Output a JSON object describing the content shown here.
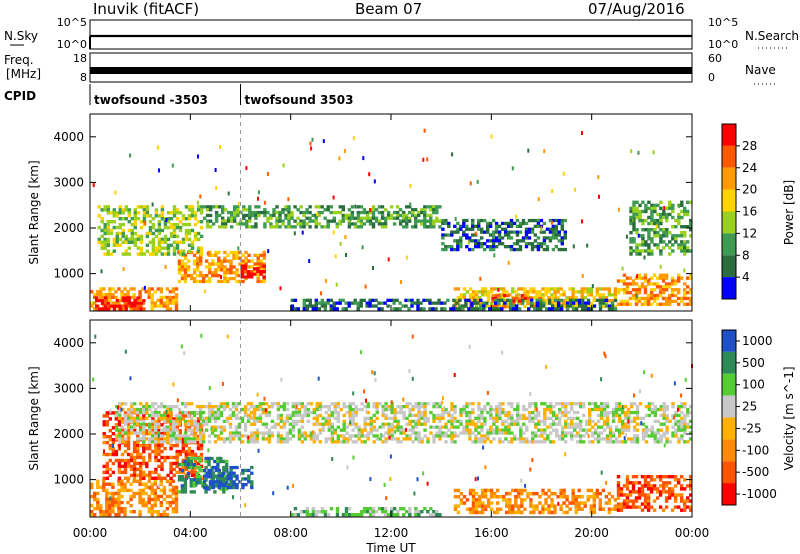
{
  "header": {
    "station": "Inuvik (fitACF)",
    "beam": "Beam 07",
    "date": "07/Aug/2016"
  },
  "sky_panel": {
    "left_label": "N.Sky",
    "right_label": "N.Search",
    "left_ticks": [
      "10^5",
      "10^0"
    ],
    "right_ticks": [
      "10^5",
      "10^0"
    ]
  },
  "freq_panel": {
    "left_label_1": "Freq.",
    "left_label_2": "[MHz]",
    "right_label": "Nave",
    "left_ticks": [
      "18",
      "8"
    ],
    "right_ticks": [
      "60",
      "0"
    ]
  },
  "cpid_panel": {
    "label": "CPID",
    "segments": [
      {
        "label": "twofsound -3503",
        "start_hour": 0
      },
      {
        "label": "twofsound 3503",
        "start_hour": 6
      }
    ]
  },
  "colors": {
    "power": [
      "#0000ff",
      "#2a6e3f",
      "#3f9a52",
      "#9ad020",
      "#ffd200",
      "#ff9a00",
      "#ff5a00",
      "#ff0000"
    ],
    "velocity": [
      "#ff0000",
      "#ff5500",
      "#ff8c00",
      "#ffb000",
      "#c8c8c8",
      "#55cc33",
      "#2e8b57",
      "#1e50c8"
    ]
  },
  "chart_data": [
    {
      "type": "heatmap",
      "title": "",
      "xlabel": "Time UT",
      "ylabel": "Slant Range [km]",
      "xlim": [
        0,
        24
      ],
      "ylim": [
        180,
        4500
      ],
      "x_ticks": [
        "00:00",
        "04:00",
        "08:00",
        "12:00",
        "16:00",
        "20:00",
        "00:00"
      ],
      "y_ticks": [
        "1000",
        "2000",
        "3000",
        "4000"
      ],
      "colorbar_label": "Power [dB]",
      "colorbar_ticks": [
        "4",
        "8",
        "12",
        "16",
        "20",
        "24",
        "28"
      ],
      "regions": [
        {
          "t0": 0,
          "t1": 3.5,
          "r0": 200,
          "r1": 700,
          "level": 5
        },
        {
          "t0": 0.2,
          "t1": 2.2,
          "r0": 200,
          "r1": 500,
          "level": 7
        },
        {
          "t0": 3.5,
          "t1": 7.0,
          "r0": 800,
          "r1": 1500,
          "level": 5
        },
        {
          "t0": 6.0,
          "t1": 7.0,
          "r0": 900,
          "r1": 1200,
          "level": 7
        },
        {
          "t0": 0.3,
          "t1": 4.5,
          "r0": 1400,
          "r1": 2500,
          "level": 3
        },
        {
          "t0": 4.5,
          "t1": 14.0,
          "r0": 2000,
          "r1": 2500,
          "level": 2
        },
        {
          "t0": 14.0,
          "t1": 19.0,
          "r0": 1500,
          "r1": 2200,
          "level": 1
        },
        {
          "t0": 14.5,
          "t1": 21.0,
          "r0": 250,
          "r1": 700,
          "level": 4
        },
        {
          "t0": 16.0,
          "t1": 18.0,
          "r0": 250,
          "r1": 550,
          "level": 6
        },
        {
          "t0": 21.0,
          "t1": 24.0,
          "r0": 300,
          "r1": 1000,
          "level": 5
        },
        {
          "t0": 21.5,
          "t1": 24.0,
          "r0": 1400,
          "r1": 2600,
          "level": 2
        },
        {
          "t0": 8.0,
          "t1": 21.0,
          "r0": 200,
          "r1": 450,
          "level": 1
        }
      ]
    },
    {
      "type": "heatmap",
      "title": "",
      "xlabel": "Time UT",
      "ylabel": "Slant Range [km]",
      "xlim": [
        0,
        24
      ],
      "ylim": [
        180,
        4500
      ],
      "x_ticks": [
        "00:00",
        "04:00",
        "08:00",
        "12:00",
        "16:00",
        "20:00",
        "00:00"
      ],
      "y_ticks": [
        "1000",
        "2000",
        "3000",
        "4000"
      ],
      "colorbar_label": "Velocity [m s^-1]",
      "colorbar_ticks": [
        "-1000",
        "-500",
        "-100",
        "-25",
        "25",
        "100",
        "500",
        "1000"
      ],
      "regions": [
        {
          "t0": 0,
          "t1": 3.5,
          "r0": 200,
          "r1": 1000,
          "level": 2
        },
        {
          "t0": 0.5,
          "t1": 4.5,
          "r0": 1000,
          "r1": 2500,
          "level": 1
        },
        {
          "t0": 3.5,
          "t1": 5.5,
          "r0": 700,
          "r1": 1500,
          "level": 6
        },
        {
          "t0": 4.5,
          "t1": 6.5,
          "r0": 800,
          "r1": 1300,
          "level": 7
        },
        {
          "t0": 1.0,
          "t1": 22.0,
          "r0": 1800,
          "r1": 2700,
          "level": 4
        },
        {
          "t0": 8.0,
          "t1": 14.0,
          "r0": 200,
          "r1": 400,
          "level": 5
        },
        {
          "t0": 14.5,
          "t1": 21.0,
          "r0": 250,
          "r1": 800,
          "level": 2
        },
        {
          "t0": 21.0,
          "t1": 24.0,
          "r0": 300,
          "r1": 1100,
          "level": 1
        },
        {
          "t0": 22.0,
          "t1": 24.0,
          "r0": 1800,
          "r1": 2700,
          "level": 4
        }
      ]
    }
  ]
}
